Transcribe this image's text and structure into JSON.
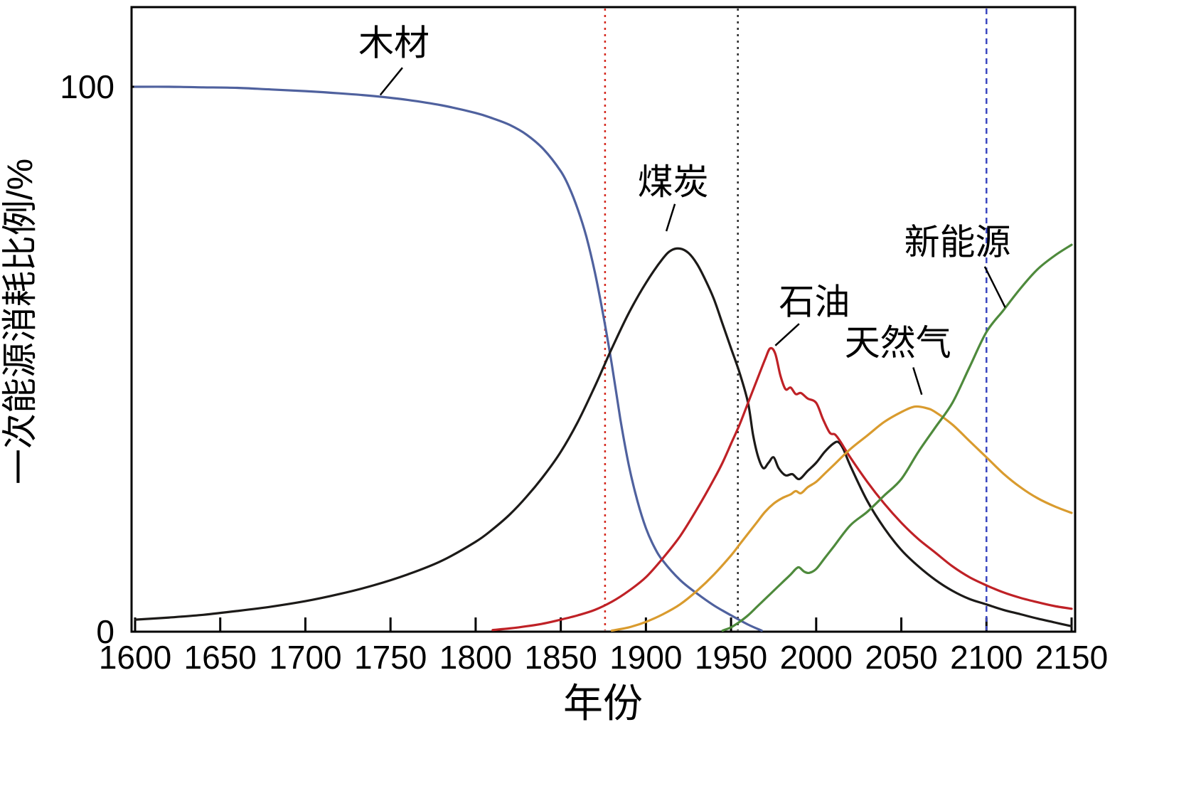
{
  "figure": {
    "background": "#ffffff"
  },
  "chart_data": {
    "type": "line",
    "title": "",
    "xlabel": "年份",
    "ylabel": "一次能源消耗比例/%",
    "xlim": [
      1600,
      2150
    ],
    "ylim": [
      0,
      100
    ],
    "x_ticks": [
      1600,
      1650,
      1700,
      1750,
      1800,
      1850,
      1900,
      1950,
      2000,
      2050,
      2100,
      2150
    ],
    "y_ticks": [
      0,
      100
    ],
    "grid": false,
    "legend_position": "none-inline-labels",
    "axis_color": "#000000",
    "text_color": "#000000",
    "series": [
      {
        "id": "wood",
        "name": "木材",
        "color": "#4f619e",
        "points": [
          [
            1600,
            100
          ],
          [
            1620,
            100
          ],
          [
            1640,
            99.9
          ],
          [
            1660,
            99.8
          ],
          [
            1680,
            99.5
          ],
          [
            1700,
            99.2
          ],
          [
            1720,
            98.8
          ],
          [
            1740,
            98.3
          ],
          [
            1760,
            97.6
          ],
          [
            1780,
            96.6
          ],
          [
            1800,
            95.2
          ],
          [
            1810,
            94.2
          ],
          [
            1820,
            93
          ],
          [
            1830,
            91.2
          ],
          [
            1840,
            88.5
          ],
          [
            1850,
            84.5
          ],
          [
            1855,
            81.5
          ],
          [
            1860,
            77.5
          ],
          [
            1865,
            72.5
          ],
          [
            1870,
            66
          ],
          [
            1875,
            58
          ],
          [
            1880,
            49
          ],
          [
            1885,
            39
          ],
          [
            1890,
            30.5
          ],
          [
            1895,
            24
          ],
          [
            1900,
            19
          ],
          [
            1905,
            15.5
          ],
          [
            1910,
            13
          ],
          [
            1920,
            9.5
          ],
          [
            1930,
            7
          ],
          [
            1940,
            4.8
          ],
          [
            1950,
            3
          ],
          [
            1960,
            1.3
          ],
          [
            1968,
            0.2
          ]
        ]
      },
      {
        "id": "coal",
        "name": "煤炭",
        "color": "#1c1a18",
        "points": [
          [
            1600,
            2.2
          ],
          [
            1620,
            2.6
          ],
          [
            1640,
            3.1
          ],
          [
            1660,
            3.8
          ],
          [
            1680,
            4.6
          ],
          [
            1700,
            5.6
          ],
          [
            1720,
            6.9
          ],
          [
            1740,
            8.5
          ],
          [
            1760,
            10.5
          ],
          [
            1780,
            13
          ],
          [
            1800,
            16.5
          ],
          [
            1810,
            18.8
          ],
          [
            1820,
            21.5
          ],
          [
            1830,
            24.8
          ],
          [
            1840,
            28.6
          ],
          [
            1850,
            33
          ],
          [
            1860,
            38.5
          ],
          [
            1870,
            45
          ],
          [
            1875,
            48.5
          ],
          [
            1880,
            52
          ],
          [
            1890,
            58.5
          ],
          [
            1900,
            64
          ],
          [
            1910,
            68.5
          ],
          [
            1915,
            70
          ],
          [
            1920,
            70.3
          ],
          [
            1925,
            69.5
          ],
          [
            1930,
            67.5
          ],
          [
            1935,
            64.5
          ],
          [
            1940,
            61
          ],
          [
            1945,
            56.5
          ],
          [
            1950,
            52
          ],
          [
            1955,
            47.5
          ],
          [
            1960,
            42
          ],
          [
            1963,
            36
          ],
          [
            1966,
            32
          ],
          [
            1969,
            30
          ],
          [
            1972,
            31
          ],
          [
            1975,
            32
          ],
          [
            1978,
            30
          ],
          [
            1982,
            28.7
          ],
          [
            1986,
            28.9
          ],
          [
            1990,
            28
          ],
          [
            1995,
            29.5
          ],
          [
            2000,
            31
          ],
          [
            2005,
            33
          ],
          [
            2010,
            34.5
          ],
          [
            2013,
            34.8
          ],
          [
            2016,
            33.5
          ],
          [
            2020,
            30.5
          ],
          [
            2030,
            24
          ],
          [
            2040,
            19
          ],
          [
            2050,
            15
          ],
          [
            2060,
            12
          ],
          [
            2070,
            9.5
          ],
          [
            2080,
            7.5
          ],
          [
            2090,
            6
          ],
          [
            2100,
            5
          ],
          [
            2110,
            4
          ],
          [
            2120,
            3.2
          ],
          [
            2130,
            2.4
          ],
          [
            2140,
            1.7
          ],
          [
            2150,
            1
          ]
        ]
      },
      {
        "id": "oil",
        "name": "石油",
        "color": "#bf2126",
        "points": [
          [
            1810,
            0.3
          ],
          [
            1820,
            0.6
          ],
          [
            1830,
            1
          ],
          [
            1840,
            1.5
          ],
          [
            1850,
            2.2
          ],
          [
            1860,
            3
          ],
          [
            1870,
            4
          ],
          [
            1880,
            5.5
          ],
          [
            1890,
            7.5
          ],
          [
            1900,
            10
          ],
          [
            1910,
            13.5
          ],
          [
            1920,
            17.5
          ],
          [
            1930,
            22.5
          ],
          [
            1940,
            28
          ],
          [
            1945,
            31
          ],
          [
            1950,
            34.5
          ],
          [
            1955,
            38
          ],
          [
            1960,
            42
          ],
          [
            1965,
            46
          ],
          [
            1970,
            50
          ],
          [
            1973,
            52
          ],
          [
            1976,
            51
          ],
          [
            1979,
            47
          ],
          [
            1982,
            44.5
          ],
          [
            1985,
            44.8
          ],
          [
            1988,
            43.6
          ],
          [
            1991,
            43.8
          ],
          [
            1995,
            42.8
          ],
          [
            2000,
            42
          ],
          [
            2004,
            39
          ],
          [
            2008,
            36.5
          ],
          [
            2011,
            36.2
          ],
          [
            2014,
            35
          ],
          [
            2020,
            32
          ],
          [
            2030,
            27.5
          ],
          [
            2040,
            23.5
          ],
          [
            2050,
            20
          ],
          [
            2060,
            17
          ],
          [
            2070,
            14.5
          ],
          [
            2080,
            12
          ],
          [
            2090,
            10
          ],
          [
            2100,
            8.5
          ],
          [
            2110,
            7.2
          ],
          [
            2120,
            6.2
          ],
          [
            2130,
            5.4
          ],
          [
            2140,
            4.7
          ],
          [
            2150,
            4.2
          ]
        ]
      },
      {
        "id": "gas",
        "name": "天然气",
        "color": "#d99b2e",
        "points": [
          [
            1880,
            0.2
          ],
          [
            1890,
            0.8
          ],
          [
            1900,
            1.8
          ],
          [
            1910,
            3.2
          ],
          [
            1920,
            5
          ],
          [
            1930,
            7.5
          ],
          [
            1940,
            10.5
          ],
          [
            1950,
            14
          ],
          [
            1955,
            16
          ],
          [
            1960,
            18
          ],
          [
            1965,
            20
          ],
          [
            1970,
            22
          ],
          [
            1975,
            23.5
          ],
          [
            1980,
            24.5
          ],
          [
            1985,
            25.2
          ],
          [
            1988,
            25.8
          ],
          [
            1991,
            25.4
          ],
          [
            1995,
            26.5
          ],
          [
            2000,
            27.5
          ],
          [
            2005,
            29
          ],
          [
            2010,
            30.5
          ],
          [
            2020,
            33.5
          ],
          [
            2030,
            36
          ],
          [
            2040,
            38.5
          ],
          [
            2050,
            40.3
          ],
          [
            2058,
            41.3
          ],
          [
            2065,
            41
          ],
          [
            2070,
            40.3
          ],
          [
            2080,
            38
          ],
          [
            2090,
            35
          ],
          [
            2100,
            32
          ],
          [
            2110,
            29
          ],
          [
            2120,
            26.5
          ],
          [
            2130,
            24.5
          ],
          [
            2140,
            23
          ],
          [
            2150,
            21.8
          ]
        ]
      },
      {
        "id": "newenergy",
        "name": "新能源",
        "color": "#4e8a3c",
        "points": [
          [
            1945,
            0.2
          ],
          [
            1950,
            0.8
          ],
          [
            1955,
            1.8
          ],
          [
            1960,
            3
          ],
          [
            1965,
            4.5
          ],
          [
            1970,
            6
          ],
          [
            1975,
            7.5
          ],
          [
            1980,
            9
          ],
          [
            1985,
            10.5
          ],
          [
            1988,
            11.5
          ],
          [
            1990,
            11.8
          ],
          [
            1993,
            11
          ],
          [
            1996,
            10.8
          ],
          [
            2000,
            11.5
          ],
          [
            2005,
            13.5
          ],
          [
            2010,
            15.5
          ],
          [
            2020,
            19.5
          ],
          [
            2030,
            22
          ],
          [
            2040,
            25
          ],
          [
            2050,
            28
          ],
          [
            2060,
            33
          ],
          [
            2070,
            37.5
          ],
          [
            2080,
            42
          ],
          [
            2090,
            48.5
          ],
          [
            2100,
            55
          ],
          [
            2110,
            59
          ],
          [
            2120,
            63
          ],
          [
            2130,
            66.5
          ],
          [
            2140,
            69
          ],
          [
            2150,
            71
          ]
        ]
      }
    ],
    "vlines": [
      {
        "id": "vline-red",
        "x": 1876,
        "color": "#d42a20",
        "dash": "3 6"
      },
      {
        "id": "vline-black",
        "x": 1954,
        "color": "#2b2b2b",
        "dash": "3 6"
      },
      {
        "id": "vline-blue",
        "x": 2100,
        "color": "#3a46c0",
        "dash": "8 6"
      }
    ],
    "annotations": [
      {
        "id": "wood",
        "text": "木材",
        "x": 1752,
        "y": 108,
        "leader": [
          [
            1757,
            103.5
          ],
          [
            1744,
            98.5
          ]
        ]
      },
      {
        "id": "coal",
        "text": "煤炭",
        "x": 1916,
        "y": 82.5,
        "leader": [
          [
            1917,
            78.5
          ],
          [
            1912,
            73.5
          ]
        ]
      },
      {
        "id": "oil",
        "text": "石油",
        "x": 1999,
        "y": 60.5,
        "leader": [
          [
            1990,
            56.5
          ],
          [
            1976,
            52.5
          ]
        ]
      },
      {
        "id": "gas",
        "text": "天然气",
        "x": 2048,
        "y": 53,
        "leader": [
          [
            2057,
            48.5
          ],
          [
            2062,
            43.5
          ]
        ]
      },
      {
        "id": "newenergy",
        "text": "新能源",
        "x": 2083,
        "y": 71.5,
        "leader": [
          [
            2099,
            67
          ],
          [
            2111,
            59.5
          ]
        ]
      }
    ]
  }
}
